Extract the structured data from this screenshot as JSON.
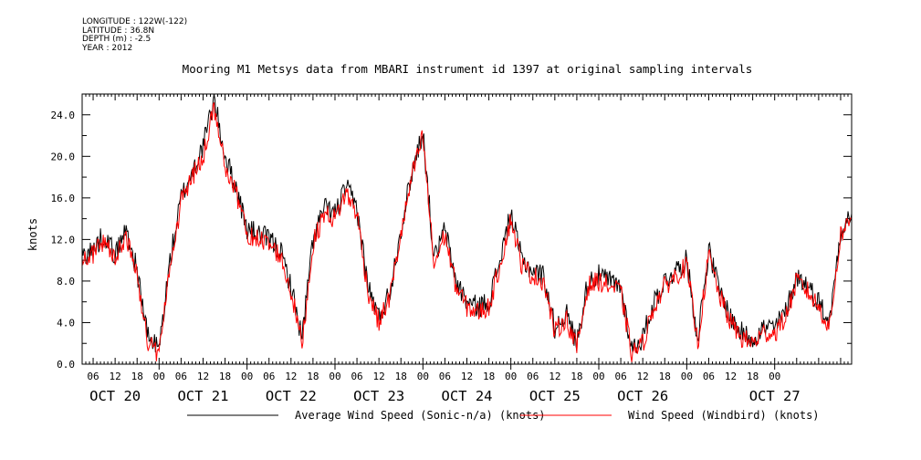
{
  "header": {
    "longitude": "LONGITUDE : 122W(-122)",
    "latitude": "LATITUDE : 36.8N",
    "depth": "DEPTH (m) : -2.5",
    "year": "YEAR : 2012"
  },
  "chart_data": {
    "type": "line",
    "title": "Mooring M1 Metsys data from MBARI instrument id 1397 at original sampling intervals",
    "ylabel": "knots",
    "ylim": [
      0,
      26
    ],
    "y_ticks": [
      "0.0",
      "4.0",
      "8.0",
      "12.0",
      "16.0",
      "20.0",
      "24.0"
    ],
    "x_range_hours": [
      -21,
      189
    ],
    "x_hour_ticks": [
      "06",
      "12",
      "18",
      "00",
      "06",
      "12",
      "18",
      "00",
      "06",
      "12",
      "18",
      "00",
      "06",
      "12",
      "18",
      "00",
      "06",
      "12",
      "18",
      "00",
      "06",
      "12",
      "18",
      "00",
      "06",
      "12",
      "18",
      "00",
      "06",
      "12",
      "18",
      "00"
    ],
    "x_date_labels": [
      "OCT 20",
      "OCT 21",
      "OCT 22",
      "OCT 23",
      "OCT 24",
      "OCT 25",
      "OCT 26",
      "OCT 27"
    ],
    "series": [
      {
        "name": "Average Wind Speed (Sonic-n/a) (knots)",
        "color": "#000000",
        "x": [
          -21,
          -18,
          -15,
          -12,
          -9,
          -6,
          -3,
          0,
          3,
          6,
          9,
          12,
          15,
          18,
          21,
          24,
          27,
          30,
          33,
          36,
          39,
          42,
          45,
          48,
          51,
          54,
          57,
          60,
          63,
          66,
          69,
          72,
          75,
          78,
          81,
          84,
          87,
          90,
          93,
          96,
          99,
          102,
          105,
          108,
          111,
          114,
          117,
          120,
          123,
          126,
          129,
          132,
          135,
          138,
          141,
          144,
          147,
          150,
          153,
          156,
          159,
          162,
          165,
          168,
          171,
          174,
          177,
          180,
          183,
          186,
          189
        ],
        "values": [
          10.5,
          11,
          12.5,
          10.5,
          13,
          9,
          2.5,
          1.5,
          10,
          16,
          18.5,
          21,
          25.5,
          20,
          17,
          13,
          12.5,
          12,
          11,
          7.5,
          2.5,
          12,
          15,
          14.5,
          17,
          15,
          7.5,
          4.5,
          7,
          13,
          18.5,
          22.5,
          10,
          13,
          8,
          6,
          5.5,
          6,
          10,
          14.5,
          10,
          9,
          8.5,
          3.5,
          5,
          2,
          8,
          8.5,
          8,
          7.5,
          1.5,
          2.5,
          6,
          8,
          9,
          10,
          2.5,
          11,
          7,
          4.5,
          3,
          2.5,
          3.5,
          3.5,
          5,
          8.5,
          7.5,
          6,
          4,
          13,
          14.5
        ],
        "noise": 1.1
      },
      {
        "name": "Wind Speed (Windbird) (knots)",
        "color": "#ff0000",
        "x": [
          -21,
          -18,
          -15,
          -12,
          -9,
          -6,
          -3,
          0,
          3,
          6,
          9,
          12,
          15,
          18,
          21,
          24,
          27,
          30,
          33,
          36,
          39,
          42,
          45,
          48,
          51,
          54,
          57,
          60,
          63,
          66,
          69,
          72,
          75,
          78,
          81,
          84,
          87,
          90,
          93,
          96,
          99,
          102,
          105,
          108,
          111,
          114,
          117,
          120,
          123,
          126,
          129,
          132,
          135,
          138,
          141,
          144,
          147,
          150,
          153,
          156,
          159,
          162,
          165,
          168,
          171,
          174,
          177,
          180,
          183,
          186,
          189
        ],
        "values": [
          10,
          10.5,
          12,
          10,
          12.5,
          8.5,
          2,
          1,
          9.5,
          15.5,
          18,
          20,
          24.5,
          19,
          16.5,
          12.5,
          12,
          11.5,
          10.5,
          7,
          2,
          11.5,
          14.5,
          14,
          16.5,
          14.5,
          7,
          4,
          6.5,
          12.5,
          18,
          22,
          9.5,
          12.5,
          7.5,
          5.5,
          5,
          5.5,
          9.5,
          14,
          9.5,
          8.5,
          8,
          3,
          4.5,
          1.5,
          7.5,
          8,
          7.5,
          7,
          1,
          2,
          5.5,
          7.5,
          8.5,
          9.5,
          2,
          10.5,
          6.5,
          4,
          2.5,
          2,
          3,
          3,
          4.5,
          8,
          7,
          5.5,
          3.5,
          12.5,
          14
        ],
        "noise": 1.0
      }
    ]
  }
}
